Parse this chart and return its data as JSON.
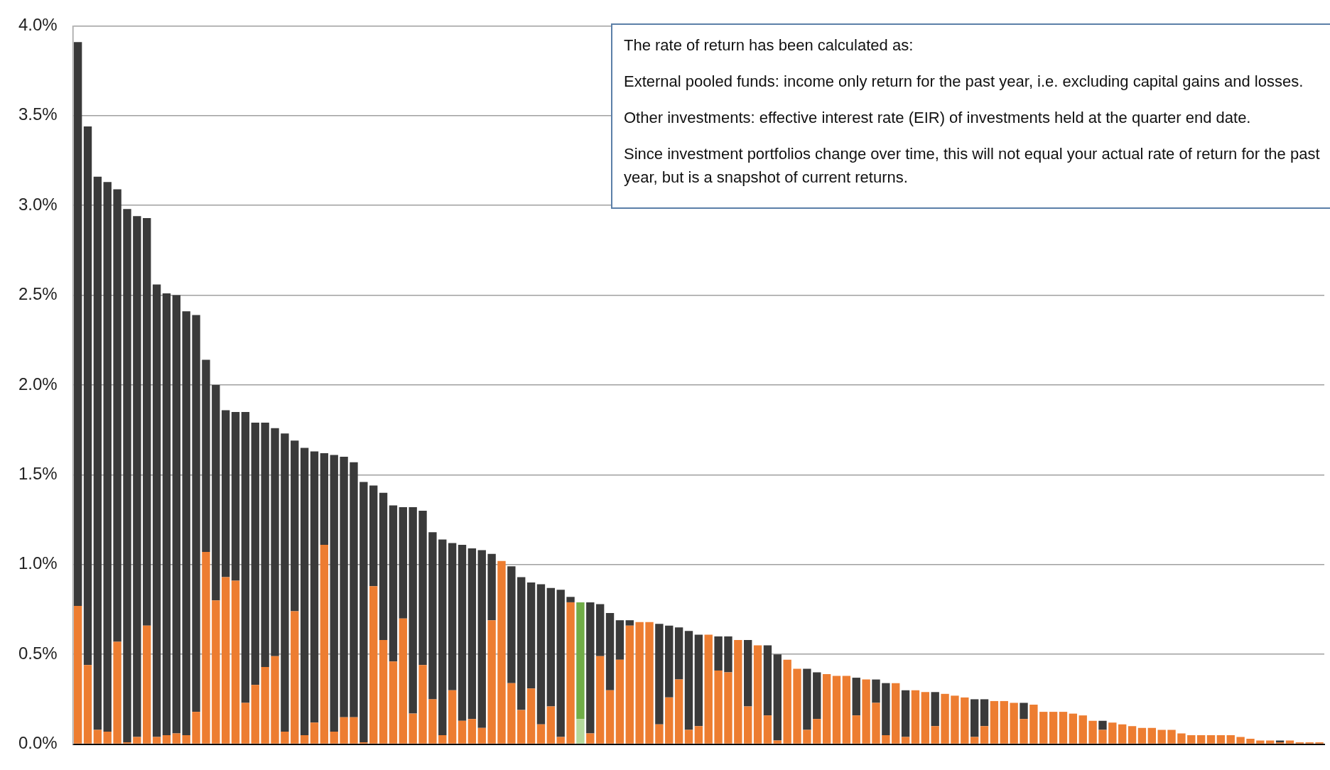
{
  "chart_data": {
    "type": "bar",
    "stacked": true,
    "grid": "y",
    "tick_labels": "y",
    "categories": [
      null,
      null,
      null,
      null,
      null,
      null,
      null,
      null,
      null,
      null,
      null,
      null,
      null,
      null,
      null,
      null,
      null,
      null,
      null,
      null,
      null,
      null,
      null,
      null,
      null,
      null,
      null,
      null,
      null,
      null,
      null,
      null,
      null,
      null,
      null,
      null,
      null,
      null,
      null,
      null,
      null,
      null,
      null,
      null,
      null,
      null,
      null,
      null,
      null,
      null,
      null,
      null,
      null,
      null,
      null,
      null,
      null,
      null,
      null,
      null,
      null,
      null,
      null,
      null,
      null,
      null,
      null,
      null,
      null,
      null,
      null,
      null,
      null,
      null,
      null,
      null,
      null,
      null,
      null,
      null,
      null,
      null,
      null,
      null,
      null,
      null,
      null,
      null,
      null,
      null,
      null,
      null,
      null,
      null,
      null,
      null,
      null,
      null,
      null,
      null,
      null,
      null,
      null,
      null,
      null,
      null,
      null,
      null,
      null,
      null,
      null,
      null,
      null,
      null,
      null,
      null,
      null,
      null,
      null,
      null,
      null,
      null,
      null,
      null,
      null,
      null,
      null
    ],
    "ylim": [
      0,
      4
    ],
    "yticks": [
      {
        "value": 0,
        "label": "0.0%"
      },
      {
        "value": 0.5,
        "label": "0.5%"
      },
      {
        "value": 1,
        "label": "1.0%"
      },
      {
        "value": 1.5,
        "label": "1.5%"
      },
      {
        "value": 2,
        "label": "2.0%"
      },
      {
        "value": 2.5,
        "label": "2.5%"
      },
      {
        "value": 3,
        "label": "3.0%"
      },
      {
        "value": 3.5,
        "label": "3.5%"
      },
      {
        "value": 4,
        "label": "4.0%"
      }
    ],
    "series": [
      {
        "values": [
          0.77,
          0.44,
          0.08,
          0.07,
          0.57,
          0.01,
          0.04,
          0.66,
          0.04,
          0.05,
          0.06,
          0.05,
          0.18,
          1.07,
          0.8,
          0.93,
          0.91,
          0.23,
          0.33,
          0.43,
          0.49,
          0.07,
          0.74,
          0.05,
          0.12,
          1.11,
          0.07,
          0.15,
          0.15,
          0.01,
          0.88,
          0.58,
          0.46,
          0.7,
          0.17,
          0.44,
          0.25,
          0.05,
          0.3,
          0.13,
          0.14,
          0.09,
          0.69,
          1.02,
          0.34,
          0.19,
          0.31,
          0.11,
          0.21,
          0.04,
          0.79,
          0.14,
          0.06,
          0.49,
          0.3,
          0.47,
          0.66,
          0.68,
          0.68,
          0.11,
          0.26,
          0.36,
          0.08,
          0.1,
          0.61,
          0.41,
          0.4,
          0.58,
          0.21,
          0.55,
          0.16,
          0.02,
          0.47,
          0.42,
          0.08,
          0.14,
          0.39,
          0.38,
          0.38,
          0.16,
          0.36,
          0.23,
          0.05,
          0.34,
          0.04,
          0.3,
          0.29,
          0.1,
          0.28,
          0.27,
          0.26,
          0.04,
          0.1,
          0.24,
          0.24,
          0.23,
          0.14,
          0.22,
          0.18,
          0.18,
          0.18,
          0.17,
          0.16,
          0.13,
          0.08,
          0.12,
          0.11,
          0.1,
          0.09,
          0.09,
          0.08,
          0.08,
          0.06,
          0.05,
          0.05,
          0.05,
          0.05,
          0.05,
          0.04,
          0.03,
          0.02,
          0.02,
          0.01,
          0.02,
          0.01,
          0.01,
          0.01
        ],
        "colors": [
          "#ed7d31",
          "#ed7d31",
          "#ed7d31",
          "#ed7d31",
          "#ed7d31",
          "#ed7d31",
          "#ed7d31",
          "#ed7d31",
          "#ed7d31",
          "#ed7d31",
          "#ed7d31",
          "#ed7d31",
          "#ed7d31",
          "#ed7d31",
          "#ed7d31",
          "#ed7d31",
          "#ed7d31",
          "#ed7d31",
          "#ed7d31",
          "#ed7d31",
          "#ed7d31",
          "#ed7d31",
          "#ed7d31",
          "#ed7d31",
          "#ed7d31",
          "#ed7d31",
          "#ed7d31",
          "#ed7d31",
          "#ed7d31",
          "#ed7d31",
          "#ed7d31",
          "#ed7d31",
          "#ed7d31",
          "#ed7d31",
          "#ed7d31",
          "#ed7d31",
          "#ed7d31",
          "#ed7d31",
          "#ed7d31",
          "#ed7d31",
          "#ed7d31",
          "#ed7d31",
          "#ed7d31",
          "#ed7d31",
          "#ed7d31",
          "#ed7d31",
          "#ed7d31",
          "#ed7d31",
          "#ed7d31",
          "#ed7d31",
          "#ed7d31",
          "#b4d89b",
          "#ed7d31",
          "#ed7d31",
          "#ed7d31",
          "#ed7d31",
          "#ed7d31",
          "#ed7d31",
          "#ed7d31",
          "#ed7d31",
          "#ed7d31",
          "#ed7d31",
          "#ed7d31",
          "#ed7d31",
          "#ed7d31",
          "#ed7d31",
          "#ed7d31",
          "#ed7d31",
          "#ed7d31",
          "#ed7d31",
          "#ed7d31",
          "#ed7d31",
          "#ed7d31",
          "#ed7d31",
          "#ed7d31",
          "#ed7d31",
          "#ed7d31",
          "#ed7d31",
          "#ed7d31",
          "#ed7d31",
          "#ed7d31",
          "#ed7d31",
          "#ed7d31",
          "#ed7d31",
          "#ed7d31",
          "#ed7d31",
          "#ed7d31",
          "#ed7d31",
          "#ed7d31",
          "#ed7d31",
          "#ed7d31",
          "#ed7d31",
          "#ed7d31",
          "#ed7d31",
          "#ed7d31",
          "#ed7d31",
          "#ed7d31",
          "#ed7d31",
          "#ed7d31",
          "#ed7d31",
          "#ed7d31",
          "#ed7d31",
          "#ed7d31",
          "#ed7d31",
          "#ed7d31",
          "#ed7d31",
          "#ed7d31",
          "#ed7d31",
          "#ed7d31",
          "#ed7d31",
          "#ed7d31",
          "#ed7d31",
          "#ed7d31",
          "#ed7d31",
          "#ed7d31",
          "#ed7d31",
          "#ed7d31",
          "#ed7d31",
          "#ed7d31",
          "#ed7d31",
          "#ed7d31",
          "#ed7d31",
          "#ed7d31",
          "#ed7d31",
          "#ed7d31",
          "#ed7d31",
          "#ed7d31"
        ]
      },
      {
        "values": [
          3.14,
          3.0,
          3.08,
          3.06,
          2.52,
          2.97,
          2.9,
          2.27,
          2.52,
          2.46,
          2.44,
          2.36,
          2.21,
          1.07,
          1.2,
          0.93,
          0.94,
          1.62,
          1.46,
          1.36,
          1.27,
          1.66,
          0.95,
          1.6,
          1.51,
          0.51,
          1.54,
          1.45,
          1.42,
          1.45,
          0.56,
          0.82,
          0.87,
          0.62,
          1.15,
          0.86,
          0.93,
          1.09,
          0.82,
          0.98,
          0.95,
          0.99,
          0.37,
          0,
          0.65,
          0.74,
          0.59,
          0.78,
          0.66,
          0.82,
          0.03,
          0.65,
          0.73,
          0.29,
          0.43,
          0.22,
          0.03,
          0,
          0,
          0.56,
          0.4,
          0.29,
          0.55,
          0.51,
          0,
          0.19,
          0.2,
          0,
          0.37,
          0,
          0.39,
          0.48,
          0,
          0,
          0.34,
          0.26,
          0,
          0,
          0,
          0.21,
          0,
          0.13,
          0.29,
          0,
          0.26,
          0,
          0,
          0.19,
          0,
          0,
          0,
          0.21,
          0.15,
          0,
          0,
          0,
          0.09,
          0,
          0,
          0,
          0,
          0,
          0,
          0,
          0.05,
          0,
          0,
          0,
          0,
          0,
          0,
          0,
          0,
          0,
          0,
          0,
          0,
          0,
          0,
          0,
          0,
          0,
          0.01,
          0,
          0,
          0,
          0
        ],
        "colors": [
          "#3a3a3a",
          "#3a3a3a",
          "#3a3a3a",
          "#3a3a3a",
          "#3a3a3a",
          "#3a3a3a",
          "#3a3a3a",
          "#3a3a3a",
          "#3a3a3a",
          "#3a3a3a",
          "#3a3a3a",
          "#3a3a3a",
          "#3a3a3a",
          "#3a3a3a",
          "#3a3a3a",
          "#3a3a3a",
          "#3a3a3a",
          "#3a3a3a",
          "#3a3a3a",
          "#3a3a3a",
          "#3a3a3a",
          "#3a3a3a",
          "#3a3a3a",
          "#3a3a3a",
          "#3a3a3a",
          "#3a3a3a",
          "#3a3a3a",
          "#3a3a3a",
          "#3a3a3a",
          "#3a3a3a",
          "#3a3a3a",
          "#3a3a3a",
          "#3a3a3a",
          "#3a3a3a",
          "#3a3a3a",
          "#3a3a3a",
          "#3a3a3a",
          "#3a3a3a",
          "#3a3a3a",
          "#3a3a3a",
          "#3a3a3a",
          "#3a3a3a",
          "#3a3a3a",
          "#3a3a3a",
          "#3a3a3a",
          "#3a3a3a",
          "#3a3a3a",
          "#3a3a3a",
          "#3a3a3a",
          "#3a3a3a",
          "#3a3a3a",
          "#70ad47",
          "#3a3a3a",
          "#3a3a3a",
          "#3a3a3a",
          "#3a3a3a",
          "#3a3a3a",
          "#3a3a3a",
          "#3a3a3a",
          "#3a3a3a",
          "#3a3a3a",
          "#3a3a3a",
          "#3a3a3a",
          "#3a3a3a",
          "#3a3a3a",
          "#3a3a3a",
          "#3a3a3a",
          "#3a3a3a",
          "#3a3a3a",
          "#3a3a3a",
          "#3a3a3a",
          "#3a3a3a",
          "#3a3a3a",
          "#3a3a3a",
          "#3a3a3a",
          "#3a3a3a",
          "#3a3a3a",
          "#3a3a3a",
          "#3a3a3a",
          "#3a3a3a",
          "#3a3a3a",
          "#3a3a3a",
          "#3a3a3a",
          "#3a3a3a",
          "#3a3a3a",
          "#3a3a3a",
          "#3a3a3a",
          "#3a3a3a",
          "#3a3a3a",
          "#3a3a3a",
          "#3a3a3a",
          "#3a3a3a",
          "#3a3a3a",
          "#3a3a3a",
          "#3a3a3a",
          "#3a3a3a",
          "#3a3a3a",
          "#3a3a3a",
          "#3a3a3a",
          "#3a3a3a",
          "#3a3a3a",
          "#3a3a3a",
          "#3a3a3a",
          "#3a3a3a",
          "#3a3a3a",
          "#3a3a3a",
          "#3a3a3a",
          "#3a3a3a",
          "#3a3a3a",
          "#3a3a3a",
          "#3a3a3a",
          "#3a3a3a",
          "#3a3a3a",
          "#3a3a3a",
          "#3a3a3a",
          "#3a3a3a",
          "#3a3a3a",
          "#3a3a3a",
          "#3a3a3a",
          "#3a3a3a",
          "#3a3a3a",
          "#3a3a3a",
          "#3a3a3a",
          "#3a3a3a",
          "#3a3a3a",
          "#3a3a3a",
          "#3a3a3a"
        ]
      }
    ],
    "annotations": [
      "The rate of return has been calculated as:",
      "External pooled funds: income only return for the past year, i.e. excluding capital gains and losses.",
      "Other investments: effective interest rate (EIR) of investments held at the quarter end date.",
      "Since investment portfolios change over time, this will not equal your actual rate of return for the past year, but is a snapshot of current returns."
    ]
  }
}
